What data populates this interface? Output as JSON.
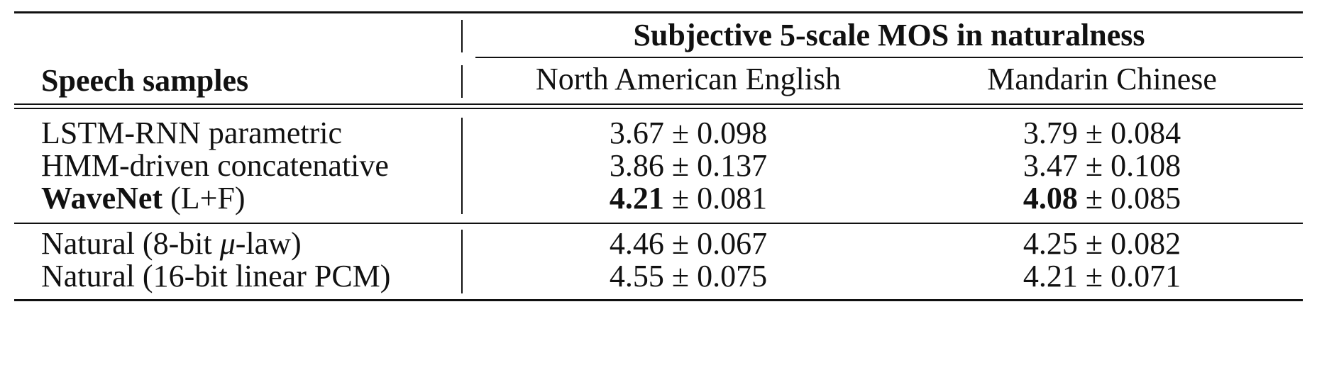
{
  "table": {
    "row_header_label": "Speech samples",
    "group_header": "Subjective 5-scale MOS in naturalness",
    "columns": [
      "North American English",
      "Mandarin Chinese"
    ],
    "pm_symbol": "±",
    "groups": [
      {
        "rows": [
          {
            "name": "LSTM-RNN parametric",
            "name_bold": "",
            "name_rest": "",
            "en_mean": "3.67",
            "en_err": "0.098",
            "zh_mean": "3.79",
            "zh_err": "0.084",
            "bold_means": false
          },
          {
            "name": "HMM-driven concatenative",
            "name_bold": "",
            "name_rest": "",
            "en_mean": "3.86",
            "en_err": "0.137",
            "zh_mean": "3.47",
            "zh_err": "0.108",
            "bold_means": false
          },
          {
            "name": "",
            "name_bold": "WaveNet",
            "name_rest": " (L+F)",
            "en_mean": "4.21",
            "en_err": "0.081",
            "zh_mean": "4.08",
            "zh_err": "0.085",
            "bold_means": true
          }
        ]
      },
      {
        "rows": [
          {
            "name_prefix": "Natural (8-bit ",
            "name_mu": "μ",
            "name_suffix": "-law)",
            "en_mean": "4.46",
            "en_err": "0.067",
            "zh_mean": "4.25",
            "zh_err": "0.082",
            "bold_means": false
          },
          {
            "name": "Natural (16-bit linear PCM)",
            "en_mean": "4.55",
            "en_err": "0.075",
            "zh_mean": "4.21",
            "zh_err": "0.071",
            "bold_means": false
          }
        ]
      }
    ]
  }
}
